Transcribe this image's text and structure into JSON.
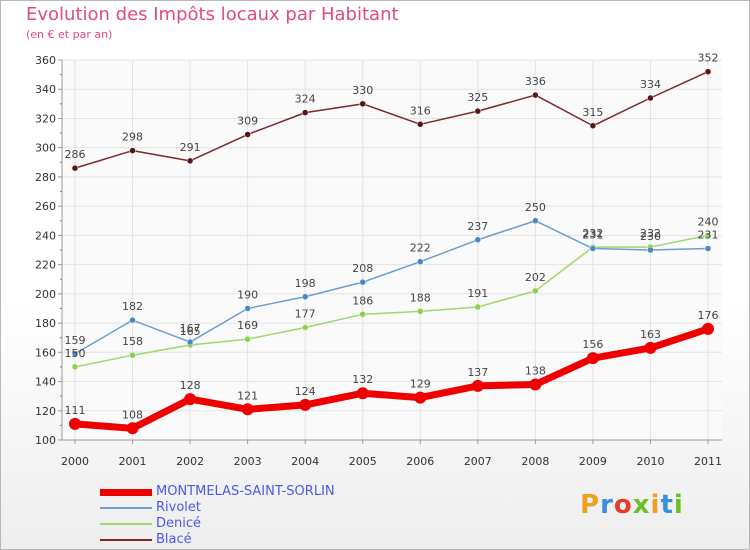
{
  "header": {
    "title": "Evolution des Impôts locaux par Habitant",
    "subtitle": "(en € et par an)"
  },
  "logo": {
    "text": "Proxiti",
    "colors": [
      "#f0a020",
      "#3a8fd8",
      "#e83c2a",
      "#6cbf2a",
      "#f0a020",
      "#3a8fd8",
      "#6cbf2a"
    ]
  },
  "chart_data": {
    "type": "line",
    "title": "Evolution des Impôts locaux par Habitant",
    "subtitle": "(en € et par an)",
    "x": [
      "2000",
      "2001",
      "2002",
      "2003",
      "2004",
      "2005",
      "2006",
      "2007",
      "2008",
      "2009",
      "2010",
      "2011"
    ],
    "ylim": [
      100,
      360
    ],
    "yticks": [
      100,
      120,
      140,
      160,
      180,
      200,
      220,
      240,
      260,
      280,
      300,
      320,
      340,
      360
    ],
    "grid": true,
    "legend_placement": "bottom-left",
    "series": [
      {
        "name": "MONTMELAS-SAINT-SORLIN",
        "color": "#ee0000",
        "values": [
          111,
          108,
          128,
          121,
          124,
          132,
          129,
          137,
          138,
          156,
          163,
          176
        ]
      },
      {
        "name": "Rivolet",
        "color": "#6a9fd0",
        "values": [
          159,
          182,
          167,
          190,
          198,
          208,
          222,
          237,
          250,
          231,
          230,
          231
        ]
      },
      {
        "name": "Denicé",
        "color": "#9ed86a",
        "values": [
          150,
          158,
          165,
          169,
          177,
          186,
          188,
          191,
          202,
          232,
          232,
          240
        ]
      },
      {
        "name": "Blacé",
        "color": "#7a2a2a",
        "values": [
          286,
          298,
          291,
          309,
          324,
          330,
          316,
          325,
          336,
          315,
          334,
          352
        ]
      }
    ],
    "data_labels": [
      [
        "111",
        "108",
        "128",
        "121",
        "124",
        "132",
        "129",
        "137",
        "138",
        "156",
        "163",
        "176"
      ],
      [
        "159",
        "182",
        "167",
        "190",
        "198",
        "208",
        "222",
        "237",
        "250",
        "231",
        "230",
        "231"
      ],
      [
        "150",
        "158",
        "165",
        "169",
        "177",
        "186",
        "188",
        "191",
        "202",
        "232",
        "232",
        "240"
      ],
      [
        "286",
        "298",
        "291",
        "309",
        "324",
        "330",
        "316",
        "325",
        "336",
        "315",
        "334",
        "352"
      ]
    ]
  }
}
